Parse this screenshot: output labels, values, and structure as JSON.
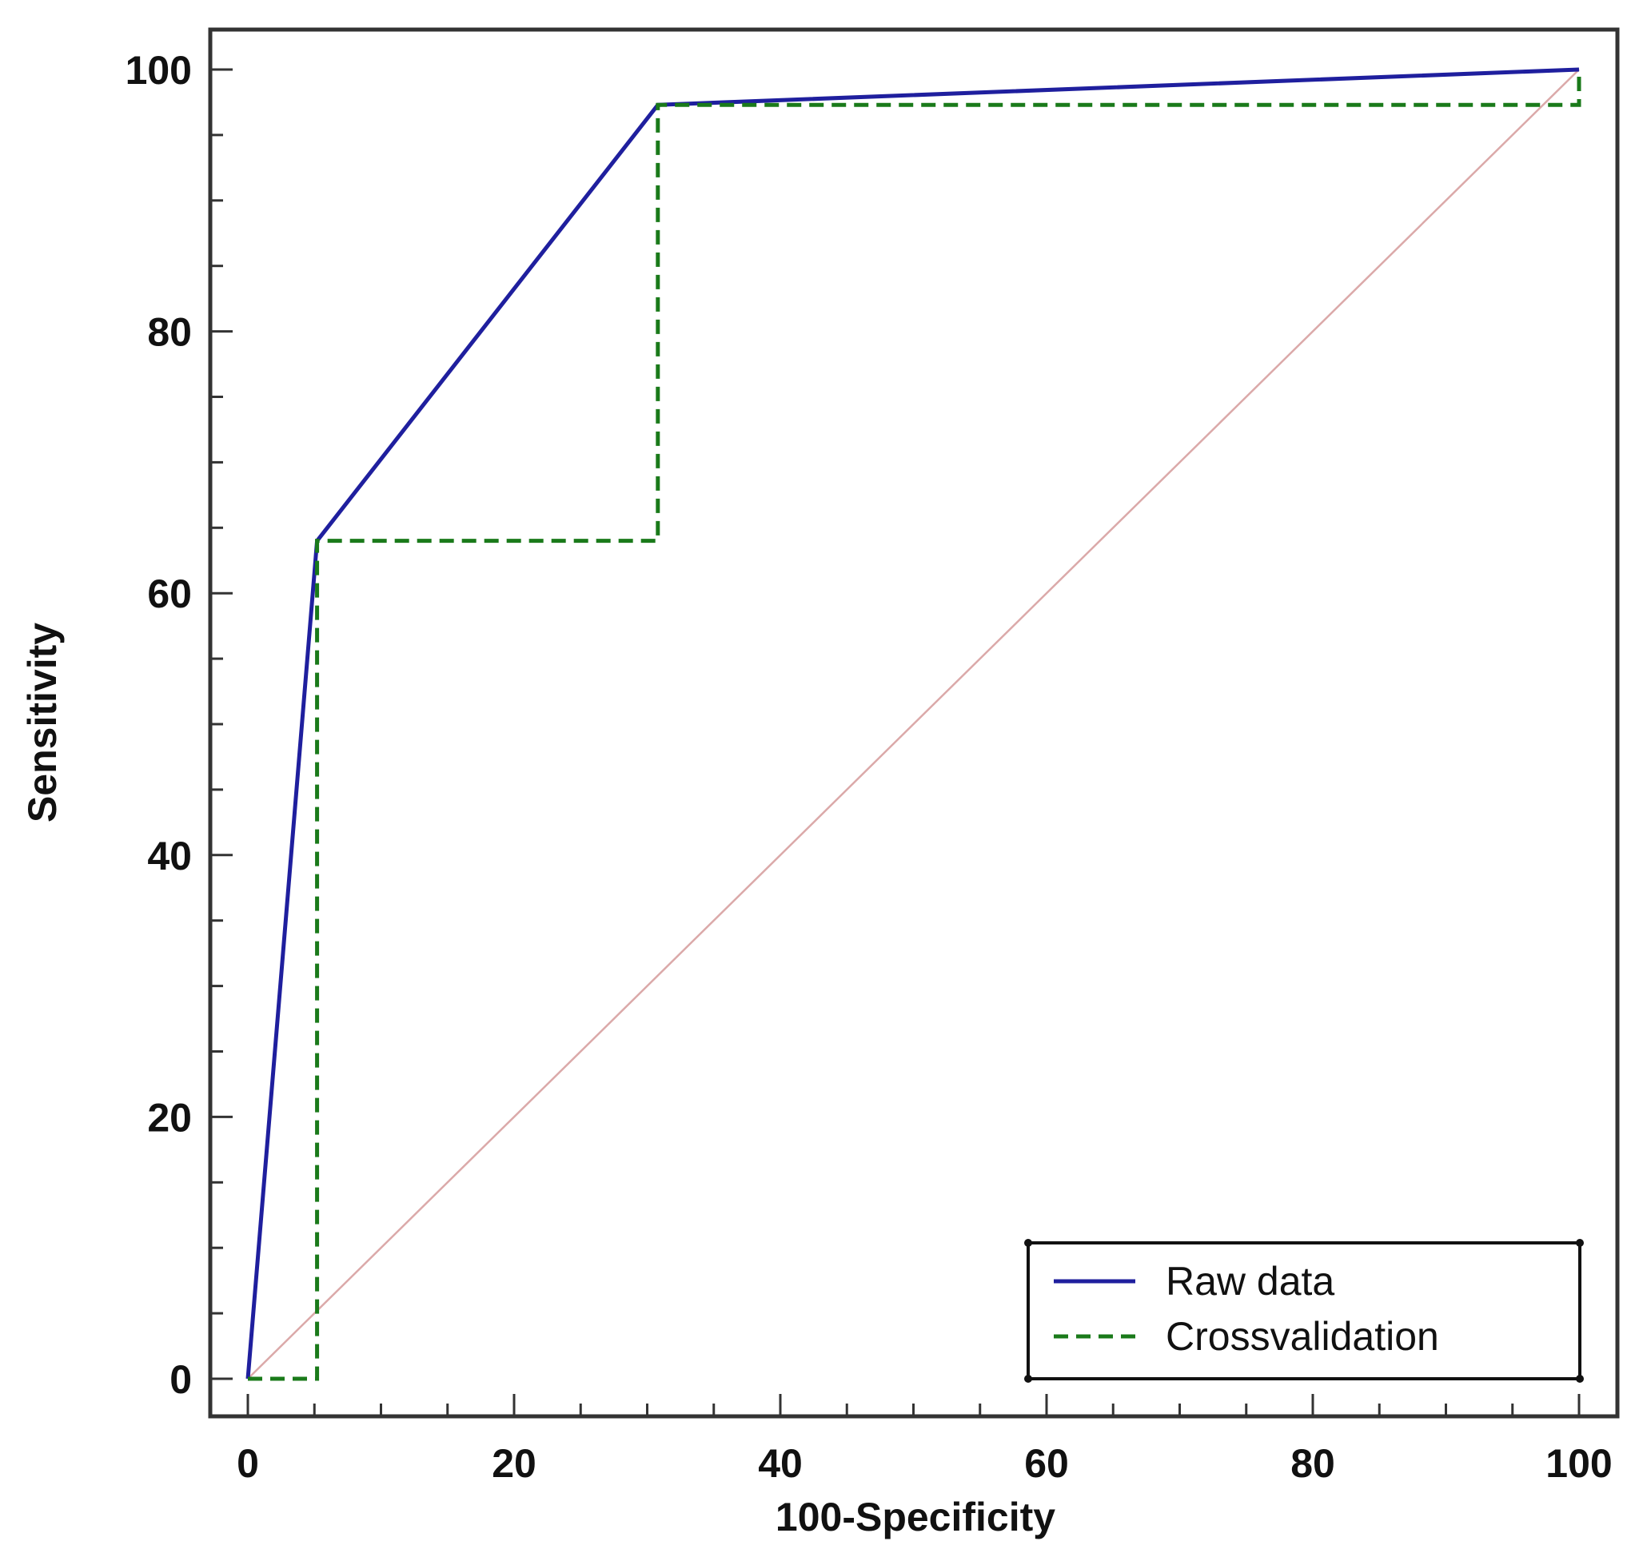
{
  "chart_data": {
    "type": "line",
    "title": "",
    "xlabel": "100-Specificity",
    "ylabel": "Sensitivity",
    "xlim": [
      0,
      100
    ],
    "ylim": [
      0,
      100
    ],
    "x_ticks": [
      "0",
      "20",
      "40",
      "60",
      "80",
      "100"
    ],
    "y_ticks": [
      "0",
      "20",
      "40",
      "60",
      "80",
      "100"
    ],
    "grid": false,
    "legend_position": "bottom-right",
    "series": [
      {
        "name": "Raw data",
        "style": "solid",
        "color": "#1f1f9e",
        "x": [
          0,
          5.2,
          30.8,
          100
        ],
        "y": [
          0,
          64,
          97.3,
          100
        ]
      },
      {
        "name": "Crossvalidation",
        "style": "dashed",
        "color": "#1a7a1a",
        "x": [
          0,
          5.2,
          5.2,
          30.8,
          30.8,
          100,
          100
        ],
        "y": [
          0,
          0,
          64,
          64,
          97.3,
          97.3,
          100
        ]
      }
    ],
    "reference_line": {
      "color": "#dba9a9",
      "x": [
        0,
        100
      ],
      "y": [
        0,
        100
      ]
    }
  }
}
